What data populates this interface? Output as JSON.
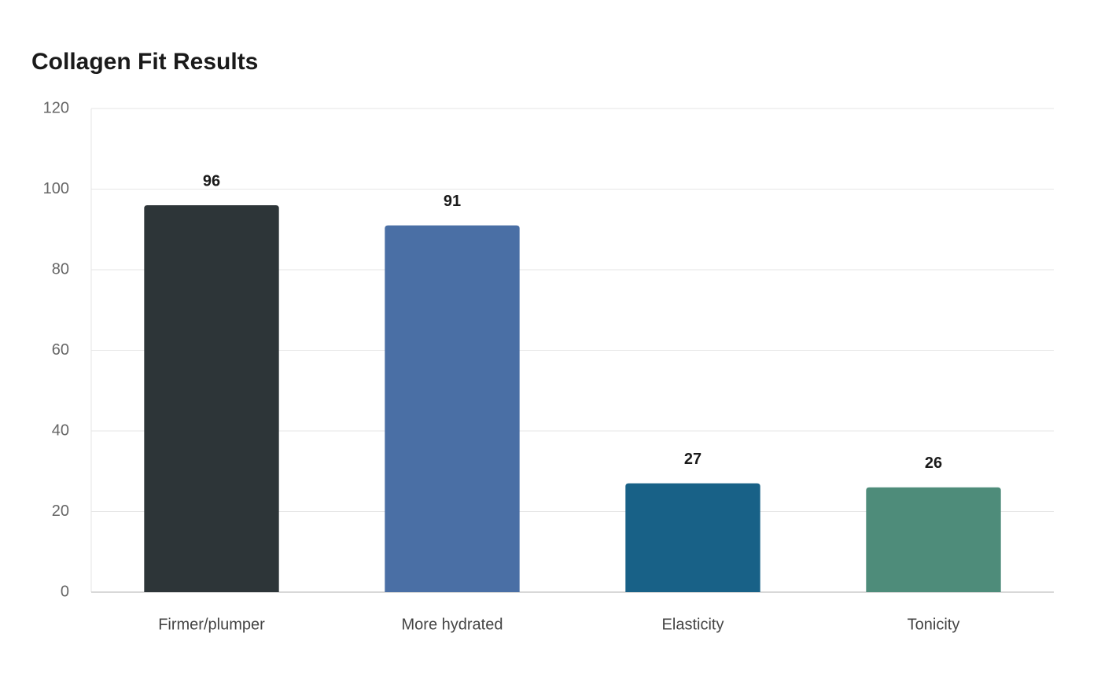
{
  "chart_data": {
    "type": "bar",
    "title": "Collagen Fit Results",
    "categories": [
      "Firmer/plumper",
      "More hydrated",
      "Elasticity",
      "Tonicity"
    ],
    "values": [
      96,
      91,
      27,
      26
    ],
    "colors": [
      "#2d3538",
      "#4a6fa5",
      "#186187",
      "#4e8c7a"
    ],
    "ylim": [
      0,
      120
    ],
    "yticks": [
      0,
      20,
      40,
      60,
      80,
      100,
      120
    ],
    "grid": true
  }
}
